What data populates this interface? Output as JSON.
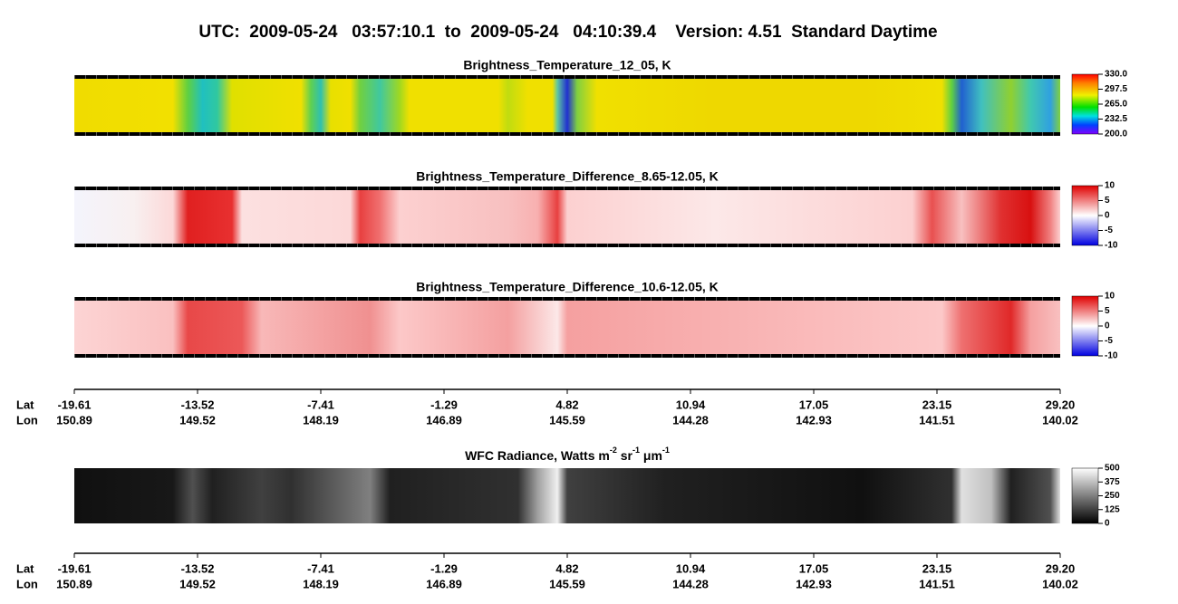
{
  "title": "UTC:  2009-05-24   03:57:10.1  to  2009-05-24   04:10:39.4    Version: 4.51  Standard Daytime",
  "panels": [
    {
      "title": "Brightness_Temperature_12_05, K",
      "colorbar": [
        "330.0",
        "297.5",
        "265.0",
        "232.5",
        "200.0"
      ]
    },
    {
      "title": "Brightness_Temperature_Difference_8.65-12.05, K",
      "colorbar": [
        "10",
        "5",
        "0",
        "-5",
        "-10"
      ]
    },
    {
      "title": "Brightness_Temperature_Difference_10.6-12.05, K",
      "colorbar": [
        "10",
        "5",
        "0",
        "-5",
        "-10"
      ]
    }
  ],
  "wfc": {
    "title": [
      "WFC Radiance, Watts m",
      "-2",
      " sr",
      "-1",
      " μm",
      "-1"
    ],
    "colorbar": [
      "500",
      "375",
      "250",
      "125",
      "0"
    ]
  },
  "axes": [
    {
      "lat_label": "Lat",
      "lon_label": "Lon",
      "lat": [
        "-19.61",
        "-13.52",
        "-7.41",
        "-1.29",
        "4.82",
        "10.94",
        "17.05",
        "23.15",
        "29.20"
      ],
      "lon": [
        "150.89",
        "149.52",
        "148.19",
        "146.89",
        "145.59",
        "144.28",
        "142.93",
        "141.51",
        "140.02"
      ]
    },
    {
      "lat_label": "Lat",
      "lon_label": "Lon",
      "lat": [
        "-19.61",
        "-13.52",
        "-7.41",
        "-1.29",
        "4.82",
        "10.94",
        "17.05",
        "23.15",
        "29.20"
      ],
      "lon": [
        "150.89",
        "149.52",
        "148.19",
        "146.89",
        "145.59",
        "144.28",
        "142.93",
        "141.51",
        "140.02"
      ]
    }
  ]
}
